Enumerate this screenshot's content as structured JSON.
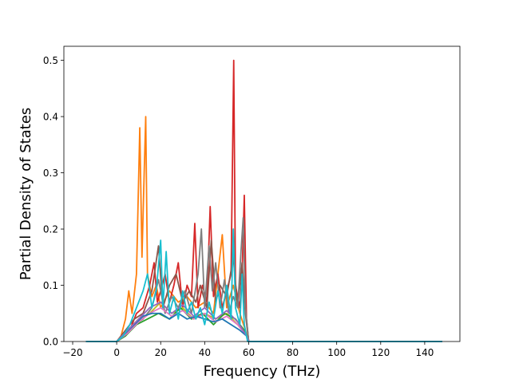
{
  "chart_data": {
    "type": "line",
    "title": "",
    "xlabel": "Frequency (THz)",
    "ylabel": "Partial Density of States",
    "xlim": [
      -24,
      156
    ],
    "ylim": [
      0.0,
      0.525
    ],
    "xticks": [
      -20,
      0,
      20,
      40,
      60,
      80,
      100,
      120,
      140
    ],
    "xtick_labels": [
      "−20",
      "0",
      "20",
      "40",
      "60",
      "80",
      "100",
      "120",
      "140"
    ],
    "yticks": [
      0.0,
      0.1,
      0.2,
      0.3,
      0.4,
      0.5
    ],
    "ytick_labels": [
      "0.0",
      "0.1",
      "0.2",
      "0.3",
      "0.4",
      "0.5"
    ],
    "grid": false,
    "legend": "none",
    "x_range_plotted": [
      -14,
      148
    ],
    "series": [
      {
        "color": "#ff7f0e",
        "points": [
          [
            -14,
            0
          ],
          [
            0,
            0
          ],
          [
            2,
            0.01
          ],
          [
            4,
            0.04
          ],
          [
            5.5,
            0.09
          ],
          [
            7,
            0.05
          ],
          [
            9,
            0.12
          ],
          [
            10.5,
            0.38
          ],
          [
            11.5,
            0.15
          ],
          [
            12.5,
            0.3
          ],
          [
            13.2,
            0.4
          ],
          [
            14,
            0.12
          ],
          [
            16,
            0.08
          ],
          [
            18,
            0.1
          ],
          [
            20,
            0.06
          ],
          [
            24,
            0.09
          ],
          [
            28,
            0.07
          ],
          [
            32,
            0.08
          ],
          [
            36,
            0.06
          ],
          [
            40,
            0.07
          ],
          [
            44,
            0.05
          ],
          [
            48,
            0.19
          ],
          [
            50,
            0.06
          ],
          [
            53,
            0.1
          ],
          [
            56,
            0.05
          ],
          [
            58.5,
            0.02
          ],
          [
            60,
            0
          ],
          [
            148,
            0
          ]
        ]
      },
      {
        "color": "#d62728",
        "points": [
          [
            -14,
            0
          ],
          [
            0,
            0
          ],
          [
            3,
            0.01
          ],
          [
            6,
            0.02
          ],
          [
            9,
            0.05
          ],
          [
            12,
            0.06
          ],
          [
            15,
            0.1
          ],
          [
            17,
            0.14
          ],
          [
            18.5,
            0.07
          ],
          [
            20,
            0.09
          ],
          [
            22,
            0.12
          ],
          [
            24,
            0.07
          ],
          [
            26,
            0.1
          ],
          [
            28,
            0.14
          ],
          [
            30,
            0.06
          ],
          [
            32,
            0.1
          ],
          [
            34,
            0.08
          ],
          [
            35.5,
            0.21
          ],
          [
            37,
            0.06
          ],
          [
            39,
            0.1
          ],
          [
            41,
            0.07
          ],
          [
            42.5,
            0.24
          ],
          [
            44,
            0.08
          ],
          [
            46,
            0.12
          ],
          [
            48,
            0.06
          ],
          [
            50,
            0.09
          ],
          [
            52,
            0.12
          ],
          [
            53.2,
            0.5
          ],
          [
            54,
            0.1
          ],
          [
            56,
            0.06
          ],
          [
            57,
            0.12
          ],
          [
            58,
            0.26
          ],
          [
            59,
            0.04
          ],
          [
            60,
            0
          ],
          [
            148,
            0
          ]
        ]
      },
      {
        "color": "#8c564b",
        "points": [
          [
            -14,
            0
          ],
          [
            0,
            0
          ],
          [
            4,
            0.02
          ],
          [
            8,
            0.04
          ],
          [
            12,
            0.05
          ],
          [
            16,
            0.09
          ],
          [
            19,
            0.17
          ],
          [
            21,
            0.06
          ],
          [
            24,
            0.1
          ],
          [
            27,
            0.12
          ],
          [
            30,
            0.07
          ],
          [
            33,
            0.09
          ],
          [
            36,
            0.07
          ],
          [
            38,
            0.1
          ],
          [
            41,
            0.06
          ],
          [
            43,
            0.18
          ],
          [
            45,
            0.07
          ],
          [
            47,
            0.1
          ],
          [
            50,
            0.08
          ],
          [
            53,
            0.15
          ],
          [
            55,
            0.06
          ],
          [
            57,
            0.14
          ],
          [
            58.5,
            0.05
          ],
          [
            60,
            0
          ],
          [
            148,
            0
          ]
        ]
      },
      {
        "color": "#7f7f7f",
        "points": [
          [
            -14,
            0
          ],
          [
            0,
            0
          ],
          [
            4,
            0.01
          ],
          [
            8,
            0.03
          ],
          [
            12,
            0.04
          ],
          [
            16,
            0.06
          ],
          [
            19,
            0.11
          ],
          [
            22,
            0.05
          ],
          [
            25,
            0.08
          ],
          [
            28,
            0.06
          ],
          [
            31,
            0.09
          ],
          [
            34,
            0.05
          ],
          [
            37,
            0.12
          ],
          [
            38.5,
            0.2
          ],
          [
            40,
            0.06
          ],
          [
            42,
            0.17
          ],
          [
            43.5,
            0.09
          ],
          [
            45,
            0.14
          ],
          [
            47,
            0.06
          ],
          [
            49,
            0.11
          ],
          [
            51,
            0.05
          ],
          [
            53,
            0.08
          ],
          [
            55,
            0.06
          ],
          [
            56.5,
            0.16
          ],
          [
            57.5,
            0.22
          ],
          [
            58.5,
            0.06
          ],
          [
            60,
            0
          ],
          [
            148,
            0
          ]
        ]
      },
      {
        "color": "#bcbd22",
        "points": [
          [
            -14,
            0
          ],
          [
            0,
            0
          ],
          [
            5,
            0.02
          ],
          [
            10,
            0.04
          ],
          [
            15,
            0.05
          ],
          [
            20,
            0.07
          ],
          [
            25,
            0.05
          ],
          [
            30,
            0.06
          ],
          [
            35,
            0.04
          ],
          [
            40,
            0.05
          ],
          [
            45,
            0.04
          ],
          [
            50,
            0.05
          ],
          [
            55,
            0.03
          ],
          [
            59,
            0.01
          ],
          [
            60,
            0
          ],
          [
            148,
            0
          ]
        ]
      },
      {
        "color": "#2ca02c",
        "points": [
          [
            -14,
            0
          ],
          [
            0,
            0
          ],
          [
            4,
            0.01
          ],
          [
            9,
            0.03
          ],
          [
            14,
            0.04
          ],
          [
            19,
            0.05
          ],
          [
            24,
            0.04
          ],
          [
            29,
            0.06
          ],
          [
            34,
            0.04
          ],
          [
            39,
            0.05
          ],
          [
            44,
            0.03
          ],
          [
            49,
            0.05
          ],
          [
            54,
            0.04
          ],
          [
            58,
            0.02
          ],
          [
            60,
            0
          ],
          [
            148,
            0
          ]
        ]
      },
      {
        "color": "#e377c2",
        "points": [
          [
            -14,
            0
          ],
          [
            0,
            0
          ],
          [
            5,
            0.015
          ],
          [
            10,
            0.035
          ],
          [
            15,
            0.05
          ],
          [
            20,
            0.06
          ],
          [
            25,
            0.045
          ],
          [
            30,
            0.055
          ],
          [
            35,
            0.04
          ],
          [
            40,
            0.05
          ],
          [
            45,
            0.035
          ],
          [
            50,
            0.045
          ],
          [
            55,
            0.03
          ],
          [
            59,
            0.01
          ],
          [
            60,
            0
          ],
          [
            148,
            0
          ]
        ]
      },
      {
        "color": "#1f77b4",
        "points": [
          [
            -14,
            0
          ],
          [
            0,
            0
          ],
          [
            4,
            0.015
          ],
          [
            8,
            0.03
          ],
          [
            12,
            0.045
          ],
          [
            16,
            0.05
          ],
          [
            20,
            0.05
          ],
          [
            24,
            0.04
          ],
          [
            28,
            0.05
          ],
          [
            32,
            0.04
          ],
          [
            36,
            0.045
          ],
          [
            40,
            0.04
          ],
          [
            44,
            0.035
          ],
          [
            48,
            0.04
          ],
          [
            52,
            0.03
          ],
          [
            56,
            0.02
          ],
          [
            59,
            0.01
          ],
          [
            60,
            0
          ],
          [
            148,
            0
          ]
        ]
      },
      {
        "color": "#9467bd",
        "points": [
          [
            -14,
            0
          ],
          [
            0,
            0
          ],
          [
            5,
            0.02
          ],
          [
            10,
            0.04
          ],
          [
            15,
            0.06
          ],
          [
            20,
            0.07
          ],
          [
            25,
            0.05
          ],
          [
            30,
            0.065
          ],
          [
            35,
            0.045
          ],
          [
            40,
            0.06
          ],
          [
            45,
            0.04
          ],
          [
            50,
            0.055
          ],
          [
            55,
            0.035
          ],
          [
            59,
            0.01
          ],
          [
            60,
            0
          ],
          [
            148,
            0
          ]
        ]
      },
      {
        "color": "#17becf",
        "points": [
          [
            -14,
            0
          ],
          [
            0,
            0
          ],
          [
            3,
            0.01
          ],
          [
            6,
            0.03
          ],
          [
            9,
            0.06
          ],
          [
            12,
            0.09
          ],
          [
            14,
            0.12
          ],
          [
            16,
            0.06
          ],
          [
            18,
            0.09
          ],
          [
            20,
            0.18
          ],
          [
            21,
            0.06
          ],
          [
            22.5,
            0.16
          ],
          [
            24,
            0.05
          ],
          [
            26,
            0.08
          ],
          [
            28,
            0.04
          ],
          [
            30,
            0.09
          ],
          [
            32,
            0.05
          ],
          [
            34,
            0.07
          ],
          [
            36,
            0.04
          ],
          [
            38,
            0.06
          ],
          [
            40,
            0.03
          ],
          [
            42,
            0.07
          ],
          [
            44,
            0.04
          ],
          [
            46,
            0.09
          ],
          [
            48,
            0.05
          ],
          [
            50,
            0.1
          ],
          [
            52,
            0.04
          ],
          [
            53,
            0.2
          ],
          [
            54,
            0.06
          ],
          [
            56,
            0.03
          ],
          [
            57,
            0.12
          ],
          [
            58,
            0.03
          ],
          [
            59.5,
            0
          ],
          [
            148,
            0
          ]
        ]
      }
    ]
  }
}
